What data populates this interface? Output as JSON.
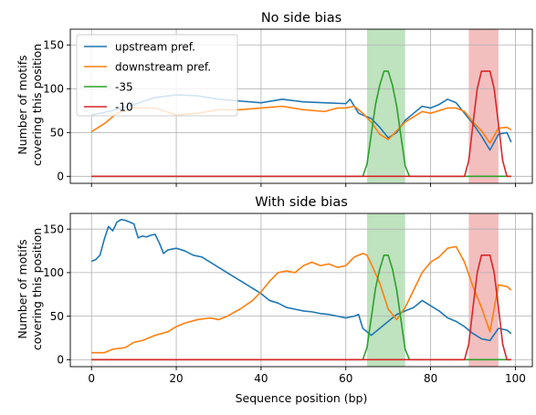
{
  "figure": {
    "xlabel": "Sequence position (bp)",
    "ylabel_line1": "Number of motifs",
    "ylabel_line2": "covering this position"
  },
  "chart_data": [
    {
      "type": "line",
      "title": "No side bias",
      "xlabel": "",
      "ylabel": "Number of motifs covering this position",
      "xlim": [
        -5,
        104
      ],
      "ylim": [
        -8,
        168
      ],
      "xticks": [
        0,
        20,
        40,
        60,
        80,
        100
      ],
      "yticks": [
        0,
        50,
        100,
        150
      ],
      "xtick_labels_visible": false,
      "grid": true,
      "legend": "top-left",
      "shaded_regions": [
        {
          "x0": 65,
          "x1": 74,
          "color": "#2ca02c"
        },
        {
          "x0": 89,
          "x1": 96,
          "color": "#d62728"
        }
      ],
      "series": [
        {
          "name": "upstream pref.",
          "color": "#1f77b4",
          "points": [
            [
              0,
              70
            ],
            [
              5,
              75
            ],
            [
              10,
              82
            ],
            [
              15,
              90
            ],
            [
              20,
              93
            ],
            [
              25,
              92
            ],
            [
              30,
              88
            ],
            [
              35,
              86
            ],
            [
              40,
              84
            ],
            [
              45,
              88
            ],
            [
              50,
              85
            ],
            [
              55,
              84
            ],
            [
              60,
              83
            ],
            [
              61,
              88
            ],
            [
              63,
              72
            ],
            [
              66,
              66
            ],
            [
              68,
              56
            ],
            [
              70,
              44
            ],
            [
              72,
              50
            ],
            [
              74,
              64
            ],
            [
              76,
              72
            ],
            [
              78,
              80
            ],
            [
              80,
              78
            ],
            [
              82,
              82
            ],
            [
              84,
              88
            ],
            [
              86,
              84
            ],
            [
              88,
              72
            ],
            [
              90,
              60
            ],
            [
              92,
              46
            ],
            [
              94,
              30
            ],
            [
              96,
              48
            ],
            [
              98,
              50
            ],
            [
              99,
              39
            ]
          ]
        },
        {
          "name": "downstream pref.",
          "color": "#ff7f0e",
          "points": [
            [
              0,
              51
            ],
            [
              3,
              60
            ],
            [
              6,
              72
            ],
            [
              10,
              78
            ],
            [
              15,
              78
            ],
            [
              20,
              70
            ],
            [
              25,
              72
            ],
            [
              30,
              76
            ],
            [
              35,
              76
            ],
            [
              40,
              78
            ],
            [
              45,
              80
            ],
            [
              50,
              76
            ],
            [
              55,
              74
            ],
            [
              58,
              78
            ],
            [
              60,
              78
            ],
            [
              62,
              80
            ],
            [
              64,
              72
            ],
            [
              66,
              62
            ],
            [
              68,
              48
            ],
            [
              70,
              42
            ],
            [
              72,
              52
            ],
            [
              74,
              62
            ],
            [
              76,
              68
            ],
            [
              78,
              74
            ],
            [
              80,
              72
            ],
            [
              84,
              78
            ],
            [
              86,
              78
            ],
            [
              88,
              74
            ],
            [
              90,
              62
            ],
            [
              92,
              52
            ],
            [
              94,
              38
            ],
            [
              96,
              55
            ],
            [
              98,
              56
            ],
            [
              99,
              53
            ]
          ]
        },
        {
          "name": "-35",
          "color": "#2ca02c",
          "points": [
            [
              0,
              0
            ],
            [
              64,
              0
            ],
            [
              65,
              14
            ],
            [
              66,
              48
            ],
            [
              67,
              82
            ],
            [
              68,
              104
            ],
            [
              69,
              120
            ],
            [
              70,
              120
            ],
            [
              71,
              104
            ],
            [
              72,
              80
            ],
            [
              73,
              46
            ],
            [
              74,
              12
            ],
            [
              75,
              0
            ],
            [
              99,
              0
            ]
          ]
        },
        {
          "name": "-10",
          "color": "#d62728",
          "points": [
            [
              0,
              0
            ],
            [
              88,
              0
            ],
            [
              89,
              18
            ],
            [
              90,
              60
            ],
            [
              91,
              100
            ],
            [
              92,
              120
            ],
            [
              93,
              120
            ],
            [
              94,
              120
            ],
            [
              95,
              100
            ],
            [
              96,
              60
            ],
            [
              97,
              18
            ],
            [
              98,
              0
            ],
            [
              99,
              0
            ]
          ]
        }
      ]
    },
    {
      "type": "line",
      "title": "With side bias",
      "xlabel": "Sequence position (bp)",
      "ylabel": "Number of motifs covering this position",
      "xlim": [
        -5,
        104
      ],
      "ylim": [
        -8,
        168
      ],
      "xticks": [
        0,
        20,
        40,
        60,
        80,
        100
      ],
      "yticks": [
        0,
        50,
        100,
        150
      ],
      "xtick_labels_visible": true,
      "grid": true,
      "legend": "none",
      "shaded_regions": [
        {
          "x0": 65,
          "x1": 74,
          "color": "#2ca02c"
        },
        {
          "x0": 89,
          "x1": 96,
          "color": "#d62728"
        }
      ],
      "series": [
        {
          "name": "upstream pref.",
          "color": "#1f77b4",
          "points": [
            [
              0,
              113
            ],
            [
              1,
              115
            ],
            [
              2,
              120
            ],
            [
              3,
              138
            ],
            [
              4,
              153
            ],
            [
              5,
              148
            ],
            [
              6,
              158
            ],
            [
              7,
              161
            ],
            [
              8,
              160
            ],
            [
              9,
              158
            ],
            [
              10,
              156
            ],
            [
              11,
              140
            ],
            [
              12,
              142
            ],
            [
              13,
              141
            ],
            [
              14,
              143
            ],
            [
              15,
              144
            ],
            [
              16,
              134
            ],
            [
              17,
              122
            ],
            [
              18,
              126
            ],
            [
              20,
              128
            ],
            [
              22,
              125
            ],
            [
              24,
              120
            ],
            [
              26,
              118
            ],
            [
              28,
              112
            ],
            [
              30,
              106
            ],
            [
              32,
              100
            ],
            [
              34,
              94
            ],
            [
              36,
              88
            ],
            [
              38,
              82
            ],
            [
              40,
              76
            ],
            [
              42,
              68
            ],
            [
              44,
              65
            ],
            [
              46,
              60
            ],
            [
              48,
              58
            ],
            [
              50,
              56
            ],
            [
              52,
              55
            ],
            [
              54,
              53
            ],
            [
              56,
              52
            ],
            [
              58,
              50
            ],
            [
              60,
              48
            ],
            [
              62,
              50
            ],
            [
              63,
              52
            ],
            [
              64,
              36
            ],
            [
              66,
              28
            ],
            [
              68,
              36
            ],
            [
              70,
              44
            ],
            [
              72,
              52
            ],
            [
              74,
              56
            ],
            [
              76,
              60
            ],
            [
              78,
              68
            ],
            [
              80,
              62
            ],
            [
              82,
              56
            ],
            [
              84,
              48
            ],
            [
              86,
              44
            ],
            [
              88,
              38
            ],
            [
              90,
              30
            ],
            [
              92,
              24
            ],
            [
              94,
              22
            ],
            [
              96,
              36
            ],
            [
              98,
              34
            ],
            [
              99,
              30
            ]
          ]
        },
        {
          "name": "downstream pref.",
          "color": "#ff7f0e",
          "points": [
            [
              0,
              8
            ],
            [
              3,
              8
            ],
            [
              5,
              12
            ],
            [
              8,
              14
            ],
            [
              10,
              20
            ],
            [
              12,
              22
            ],
            [
              15,
              28
            ],
            [
              18,
              32
            ],
            [
              20,
              38
            ],
            [
              22,
              42
            ],
            [
              25,
              46
            ],
            [
              28,
              48
            ],
            [
              30,
              46
            ],
            [
              32,
              50
            ],
            [
              35,
              58
            ],
            [
              38,
              68
            ],
            [
              40,
              78
            ],
            [
              42,
              90
            ],
            [
              44,
              100
            ],
            [
              46,
              102
            ],
            [
              48,
              100
            ],
            [
              50,
              108
            ],
            [
              52,
              112
            ],
            [
              54,
              108
            ],
            [
              56,
              110
            ],
            [
              58,
              106
            ],
            [
              60,
              108
            ],
            [
              62,
              118
            ],
            [
              64,
              122
            ],
            [
              65,
              120
            ],
            [
              66,
              110
            ],
            [
              68,
              88
            ],
            [
              70,
              58
            ],
            [
              72,
              46
            ],
            [
              74,
              60
            ],
            [
              76,
              80
            ],
            [
              78,
              100
            ],
            [
              80,
              112
            ],
            [
              82,
              118
            ],
            [
              84,
              128
            ],
            [
              86,
              130
            ],
            [
              88,
              112
            ],
            [
              90,
              84
            ],
            [
              92,
              60
            ],
            [
              94,
              32
            ],
            [
              96,
              86
            ],
            [
              98,
              84
            ],
            [
              99,
              80
            ]
          ]
        },
        {
          "name": "-35",
          "color": "#2ca02c",
          "points": [
            [
              0,
              0
            ],
            [
              64,
              0
            ],
            [
              65,
              14
            ],
            [
              66,
              48
            ],
            [
              67,
              82
            ],
            [
              68,
              104
            ],
            [
              69,
              120
            ],
            [
              70,
              120
            ],
            [
              71,
              104
            ],
            [
              72,
              80
            ],
            [
              73,
              46
            ],
            [
              74,
              12
            ],
            [
              75,
              0
            ],
            [
              99,
              0
            ]
          ]
        },
        {
          "name": "-10",
          "color": "#d62728",
          "points": [
            [
              0,
              0
            ],
            [
              88,
              0
            ],
            [
              89,
              18
            ],
            [
              90,
              60
            ],
            [
              91,
              100
            ],
            [
              92,
              120
            ],
            [
              93,
              120
            ],
            [
              94,
              120
            ],
            [
              95,
              100
            ],
            [
              96,
              60
            ],
            [
              97,
              18
            ],
            [
              98,
              0
            ],
            [
              99,
              0
            ]
          ]
        }
      ]
    }
  ]
}
